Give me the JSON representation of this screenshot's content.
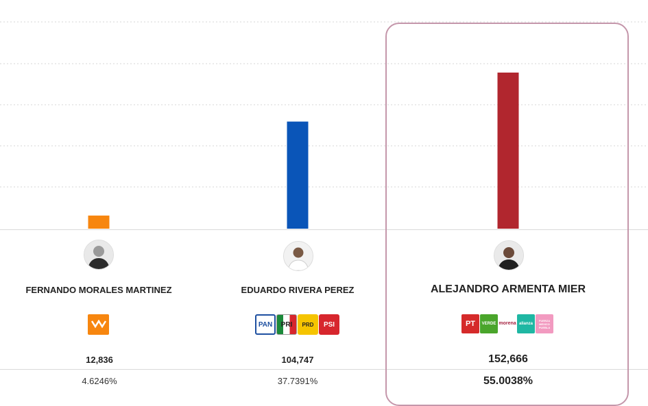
{
  "chart_data": {
    "type": "bar",
    "categories": [
      "FERNANDO MORALES MARTINEZ",
      "EDUARDO RIVERA PEREZ",
      "ALEJANDRO ARMENTA MIER"
    ],
    "values": [
      12836,
      104747,
      152666
    ],
    "vote_labels": [
      "12,836",
      "104,747",
      "152,666"
    ],
    "percentages": [
      "4.6246%",
      "37.7391%",
      "55.0038%"
    ],
    "colors": [
      "#f7860f",
      "#0a55b8",
      "#b1262e"
    ],
    "winner_index": 2,
    "grid": true
  },
  "parties": {
    "fernando": [
      {
        "name": "MOVIMIENTO CIUDADANO",
        "color": "#f7860f"
      }
    ],
    "eduardo": [
      {
        "name": "PAN",
        "color": "#1d4fa0"
      },
      {
        "name": "PRI",
        "color": "#1b8a3a"
      },
      {
        "name": "PRD",
        "color": "#f5c400"
      },
      {
        "name": "PSI",
        "color": "#d7262d"
      }
    ],
    "alejandro": [
      {
        "name": "PT",
        "color": "#d52a2a"
      },
      {
        "name": "VERDE",
        "color": "#4aa52b"
      },
      {
        "name": "morena",
        "color": "#a52340"
      },
      {
        "name": "alianza",
        "color": "#1fb7a3"
      },
      {
        "name": "FUERZA MEXICO PUEBLA",
        "color": "#f29ac0"
      }
    ]
  }
}
